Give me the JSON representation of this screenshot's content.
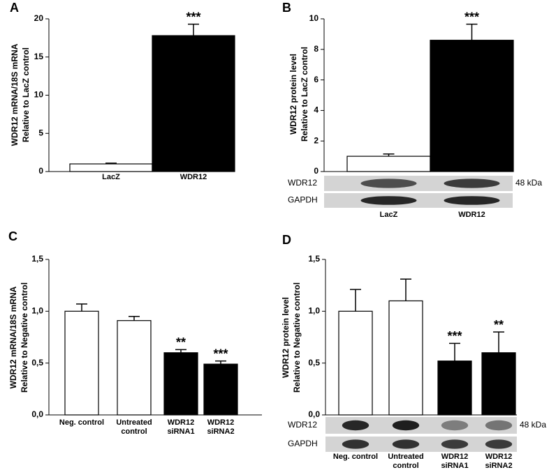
{
  "chart_data": [
    {
      "type": "bar",
      "label": "A",
      "ylabel": [
        "WDR12 mRNA/18S mRNA",
        "Relative to LacZ control"
      ],
      "categories": [
        [
          "LacZ"
        ],
        [
          "WDR12"
        ]
      ],
      "values": [
        1,
        17.8
      ],
      "errors": [
        0.1,
        1.5
      ],
      "annotations": [
        null,
        "***"
      ],
      "colors": [
        "#ffffff",
        "#000000"
      ],
      "ylim": [
        0,
        20
      ],
      "yticks": [
        0,
        5,
        10,
        15,
        20
      ]
    },
    {
      "type": "bar",
      "label": "B",
      "ylabel": [
        "WDR12 protein level",
        "Relative to LacZ control"
      ],
      "categories": [
        [
          "LacZ"
        ],
        [
          "WDR12"
        ]
      ],
      "values": [
        1,
        8.6
      ],
      "errors": [
        0.15,
        1.05
      ],
      "annotations": [
        null,
        "***"
      ],
      "colors": [
        "#ffffff",
        "#000000"
      ],
      "ylim": [
        0,
        10
      ],
      "yticks": [
        0,
        2,
        4,
        6,
        8,
        10
      ],
      "blot": {
        "rows": [
          "WDR12",
          "GAPDH"
        ],
        "marker": "48 kDa"
      }
    },
    {
      "type": "bar",
      "label": "C",
      "ylabel": [
        "WDR12 mRNA/18S mRNA",
        "Relative to Negative control"
      ],
      "categories": [
        [
          "Neg. control"
        ],
        [
          "Untreated",
          "control"
        ],
        [
          "WDR12",
          "siRNA1"
        ],
        [
          "WDR12",
          "siRNA2"
        ]
      ],
      "values": [
        1.0,
        0.91,
        0.6,
        0.49
      ],
      "errors": [
        0.07,
        0.04,
        0.03,
        0.03
      ],
      "annotations": [
        null,
        null,
        "**",
        "***"
      ],
      "colors": [
        "#ffffff",
        "#ffffff",
        "#000000",
        "#000000"
      ],
      "ylim": [
        0,
        1.5
      ],
      "yticks": [
        {
          "value": 0,
          "label": "0,0"
        },
        {
          "value": 0.5,
          "label": "0,5"
        },
        {
          "value": 1,
          "label": "1,0"
        },
        {
          "value": 1.5,
          "label": "1,5"
        }
      ]
    },
    {
      "type": "bar",
      "label": "D",
      "ylabel": [
        "WDR12 protein level",
        "Relative to Negative control"
      ],
      "categories": [
        [
          "Neg. control"
        ],
        [
          "Untreated",
          "control"
        ],
        [
          "WDR12",
          "siRNA1"
        ],
        [
          "WDR12",
          "siRNA2"
        ]
      ],
      "values": [
        1.0,
        1.1,
        0.52,
        0.6
      ],
      "errors": [
        0.21,
        0.21,
        0.17,
        0.2
      ],
      "annotations": [
        null,
        null,
        "***",
        "**"
      ],
      "colors": [
        "#ffffff",
        "#ffffff",
        "#000000",
        "#000000"
      ],
      "ylim": [
        0,
        1.5
      ],
      "yticks": [
        {
          "value": 0,
          "label": "0,0"
        },
        {
          "value": 0.5,
          "label": "0,5"
        },
        {
          "value": 1,
          "label": "1,0"
        },
        {
          "value": 1.5,
          "label": "1,5"
        }
      ],
      "blot": {
        "rows": [
          "WDR12",
          "GAPDH"
        ],
        "marker": "48 kDa"
      }
    }
  ]
}
